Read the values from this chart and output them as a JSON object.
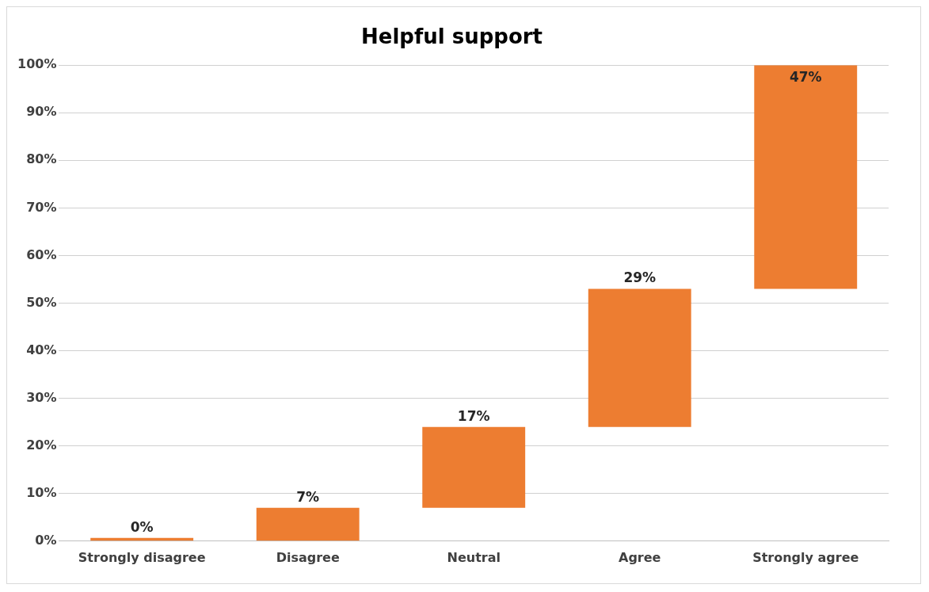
{
  "chart_data": {
    "type": "bar",
    "title": "Helpful support",
    "categories": [
      "Strongly disagree",
      "Disagree",
      "Neutral",
      "Agree",
      "Strongly agree"
    ],
    "values": [
      0,
      7,
      17,
      29,
      47
    ],
    "base": [
      0,
      0,
      7,
      24,
      53
    ],
    "value_labels": [
      "0%",
      "7%",
      "17%",
      "29%",
      "47%"
    ],
    "color": "#ed7d31",
    "ylim": [
      0,
      100
    ],
    "yticks": [
      {
        "value": 0,
        "label": "0%"
      },
      {
        "value": 10,
        "label": "10%"
      },
      {
        "value": 20,
        "label": "20%"
      },
      {
        "value": 30,
        "label": "30%"
      },
      {
        "value": 40,
        "label": "40%"
      },
      {
        "value": 50,
        "label": "50%"
      },
      {
        "value": 60,
        "label": "60%"
      },
      {
        "value": 70,
        "label": "70%"
      },
      {
        "value": 80,
        "label": "80%"
      },
      {
        "value": 90,
        "label": "90%"
      },
      {
        "value": 100,
        "label": "100%"
      }
    ],
    "grid": "y",
    "legend": false
  }
}
